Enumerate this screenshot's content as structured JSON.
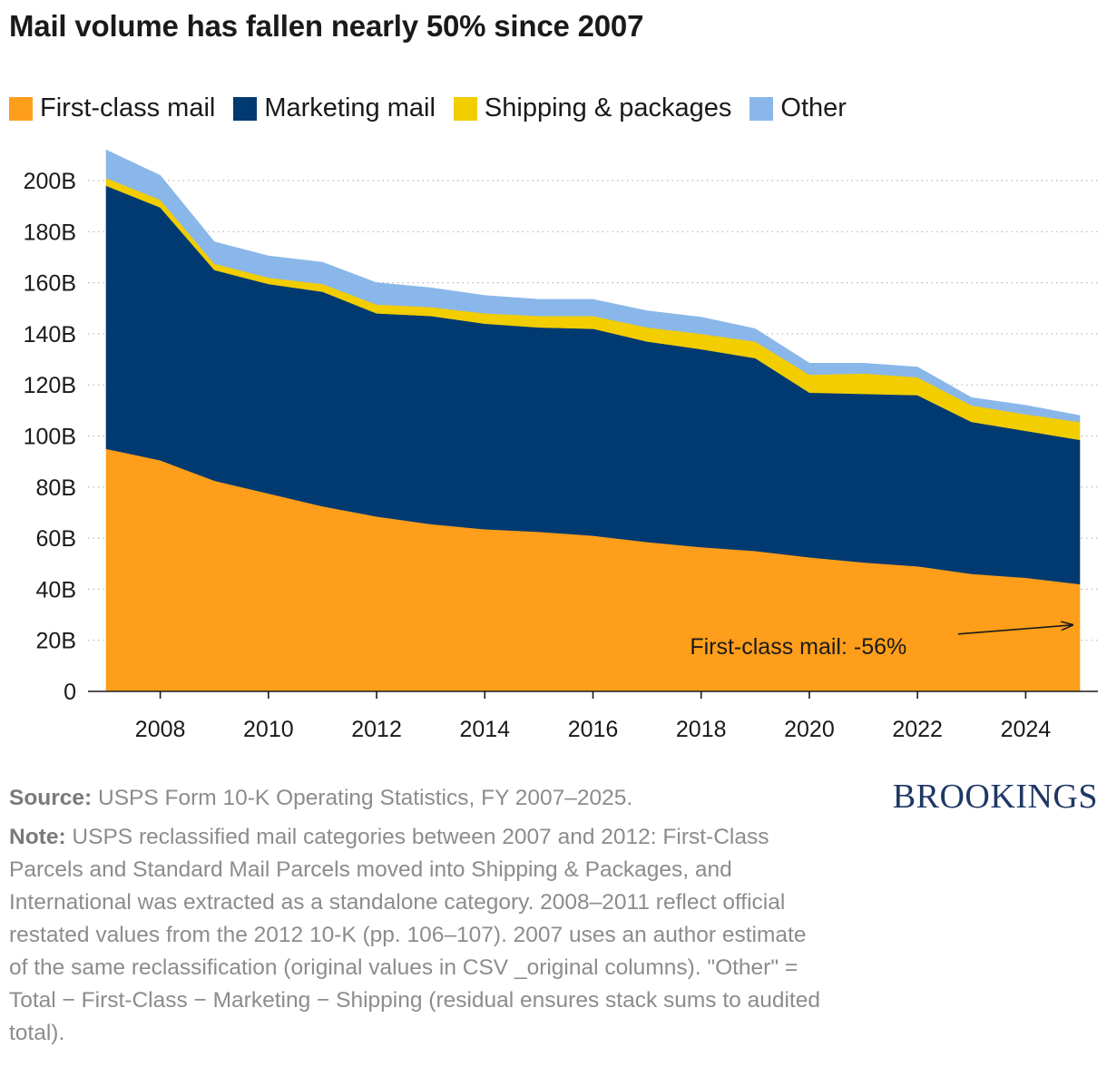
{
  "title": "Mail volume has fallen nearly 50% since 2007",
  "legend": [
    {
      "label": "First-class mail",
      "color": "#ff9e1b"
    },
    {
      "label": "Marketing mail",
      "color": "#003a70"
    },
    {
      "label": "Shipping & packages",
      "color": "#f2cd00"
    },
    {
      "label": "Other",
      "color": "#8ab7e9"
    }
  ],
  "chart_data": {
    "type": "area",
    "stacked": true,
    "x": [
      2007,
      2008,
      2009,
      2010,
      2011,
      2012,
      2013,
      2014,
      2015,
      2016,
      2017,
      2018,
      2019,
      2020,
      2021,
      2022,
      2023,
      2024,
      2025
    ],
    "series": [
      {
        "name": "First-class mail",
        "color": "#ff9e1b",
        "values": [
          95,
          90.5,
          82.5,
          77.5,
          72.5,
          68.5,
          65.5,
          63.5,
          62.5,
          61,
          58.5,
          56.5,
          55,
          52.5,
          50.5,
          49,
          46,
          44.5,
          42
        ]
      },
      {
        "name": "Marketing mail",
        "color": "#003a70",
        "values": [
          103,
          99,
          82.5,
          82,
          84,
          79.5,
          81.5,
          80.5,
          80,
          81,
          78.5,
          77.5,
          75.5,
          64.5,
          66,
          67,
          59.5,
          57.5,
          56.5
        ]
      },
      {
        "name": "Shipping & packages",
        "color": "#f2cd00",
        "values": [
          3,
          3,
          2.5,
          2.5,
          3,
          3.5,
          3.5,
          4,
          4.5,
          5,
          5.5,
          6,
          6.5,
          7,
          8,
          7,
          6.5,
          6.5,
          7
        ]
      },
      {
        "name": "Other",
        "color": "#8ab7e9",
        "values": [
          11,
          9.5,
          8.5,
          8.5,
          8.5,
          8.5,
          7.5,
          7,
          6.5,
          6.5,
          6.5,
          6.5,
          5,
          4.5,
          4,
          4,
          3,
          3.5,
          2.5
        ]
      }
    ],
    "xticks": [
      2008,
      2010,
      2012,
      2014,
      2016,
      2018,
      2020,
      2022,
      2024
    ],
    "yticks": [
      {
        "value": 0,
        "label": "0"
      },
      {
        "value": 20,
        "label": "20B"
      },
      {
        "value": 40,
        "label": "40B"
      },
      {
        "value": 60,
        "label": "60B"
      },
      {
        "value": 80,
        "label": "80B"
      },
      {
        "value": 100,
        "label": "100B"
      },
      {
        "value": 120,
        "label": "120B"
      },
      {
        "value": 140,
        "label": "140B"
      },
      {
        "value": 160,
        "label": "160B"
      },
      {
        "value": 180,
        "label": "180B"
      },
      {
        "value": 200,
        "label": "200B"
      }
    ],
    "xlim": [
      2006,
      2025.35
    ],
    "ylim": [
      0,
      215
    ],
    "grid": "dotted horizontal",
    "annotation": {
      "text": "First-class mail: -56%",
      "x": 2025,
      "y": 26
    }
  },
  "footer": {
    "source_label": "Source:",
    "source_text": " USPS Form 10-K Operating Statistics, FY 2007–2025.",
    "note_label": "Note:",
    "note_text": " USPS reclassified mail categories between 2007 and 2012: First-Class Parcels and Standard Mail Parcels moved into Shipping & Packages, and International was extracted as a standalone category. 2008–2011 reflect official restated values from the 2012 10-K (pp. 106–107). 2007 uses an author estimate of the same reclassification (original values in CSV _original columns). \"Other\" = Total − First-Class − Marketing − Shipping (residual ensures stack sums to audited total)."
  },
  "logo": "BROOKINGS"
}
